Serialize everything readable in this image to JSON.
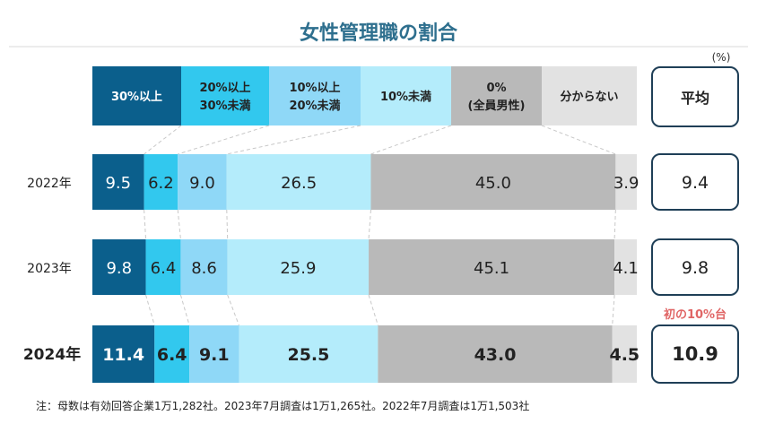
{
  "chart_data": {
    "type": "bar",
    "title": "女性管理職の割合",
    "unit": "(%)",
    "legend": [
      {
        "label": "30%以上",
        "color": "#0b5f8c"
      },
      {
        "label": "20%以上\n30%未満",
        "color": "#32c8ee"
      },
      {
        "label": "10%以上\n20%未満",
        "color": "#8fd8f7"
      },
      {
        "label": "10%未満",
        "color": "#b4ecfb"
      },
      {
        "label": "0%\n(全員男性)",
        "color": "#b9b9b9"
      },
      {
        "label": "分からない",
        "color": "#e2e2e2"
      }
    ],
    "avg_header": "平均",
    "categories": [
      "2022年",
      "2023年",
      "2024年"
    ],
    "series": [
      {
        "name": "30%以上",
        "values": [
          9.5,
          9.8,
          11.4
        ]
      },
      {
        "name": "20%以上\n30%未満",
        "values": [
          6.2,
          6.4,
          6.4
        ]
      },
      {
        "name": "10%以上\n20%未満",
        "values": [
          9.0,
          8.6,
          9.1
        ]
      },
      {
        "name": "10%未満",
        "values": [
          26.5,
          25.9,
          25.5
        ]
      },
      {
        "name": "0%\n(全員男性)",
        "values": [
          45.0,
          45.1,
          43.0
        ]
      },
      {
        "name": "分からない",
        "values": [
          3.9,
          4.1,
          4.5
        ]
      }
    ],
    "averages": [
      9.4,
      9.8,
      10.9
    ],
    "annotation": "初の10%台",
    "footnote": "注：母数は有効回答企業1万1,282社。2023年7月調査は1万1,265社。2022年7月調査は1万1,503社",
    "colors": {
      "title": "#2e6f8e",
      "annotation": "#e06666",
      "avg_border": "#1f3f57"
    }
  }
}
